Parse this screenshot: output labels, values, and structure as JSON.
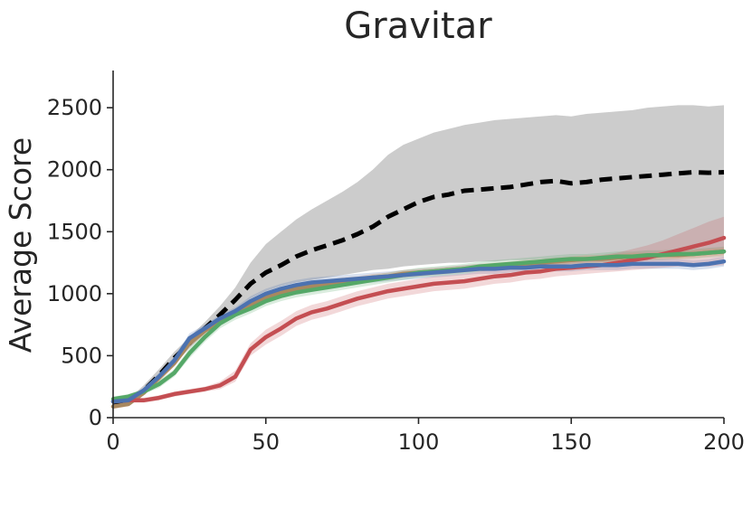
{
  "chart_data": {
    "type": "line",
    "title": "Gravitar",
    "xlabel": "",
    "ylabel": "Average Score",
    "xlim": [
      0,
      200
    ],
    "ylim": [
      0,
      2800
    ],
    "xticks": [
      0,
      50,
      100,
      150,
      200
    ],
    "yticks": [
      0,
      500,
      1000,
      1500,
      2000,
      2500
    ],
    "grid": false,
    "legend": "none",
    "series": [
      {
        "color": "#000000",
        "style": "dashed",
        "band_color": "#bbbbbb",
        "x": [
          0,
          5,
          10,
          15,
          20,
          25,
          30,
          35,
          40,
          45,
          50,
          55,
          60,
          65,
          70,
          75,
          80,
          85,
          90,
          95,
          100,
          105,
          110,
          115,
          120,
          125,
          130,
          135,
          140,
          145,
          150,
          155,
          160,
          165,
          170,
          175,
          180,
          185,
          190,
          195,
          200
        ],
        "values": [
          100,
          120,
          220,
          340,
          480,
          600,
          720,
          830,
          950,
          1080,
          1170,
          1230,
          1300,
          1350,
          1390,
          1430,
          1480,
          1540,
          1620,
          1680,
          1740,
          1780,
          1800,
          1830,
          1840,
          1850,
          1860,
          1880,
          1900,
          1910,
          1890,
          1900,
          1920,
          1930,
          1940,
          1950,
          1960,
          1970,
          1980,
          1975,
          1980
        ],
        "lower": [
          80,
          100,
          190,
          300,
          430,
          560,
          680,
          780,
          870,
          960,
          1020,
          1060,
          1090,
          1110,
          1130,
          1150,
          1170,
          1190,
          1200,
          1220,
          1230,
          1240,
          1250,
          1250,
          1260,
          1260,
          1270,
          1270,
          1280,
          1280,
          1280,
          1290,
          1290,
          1300,
          1300,
          1300,
          1310,
          1310,
          1310,
          1320,
          1320
        ],
        "upper": [
          130,
          150,
          260,
          390,
          530,
          650,
          770,
          900,
          1050,
          1250,
          1400,
          1500,
          1600,
          1680,
          1750,
          1820,
          1900,
          2000,
          2120,
          2200,
          2250,
          2300,
          2330,
          2360,
          2380,
          2400,
          2410,
          2420,
          2430,
          2440,
          2430,
          2450,
          2460,
          2470,
          2480,
          2500,
          2510,
          2520,
          2520,
          2510,
          2520
        ]
      },
      {
        "color": "#4c72b0",
        "style": "solid",
        "band_color": "#4c72b0",
        "x": [
          0,
          5,
          10,
          15,
          20,
          25,
          30,
          35,
          40,
          45,
          50,
          55,
          60,
          65,
          70,
          75,
          80,
          85,
          90,
          95,
          100,
          105,
          110,
          115,
          120,
          125,
          130,
          135,
          140,
          145,
          150,
          155,
          160,
          165,
          170,
          175,
          180,
          185,
          190,
          195,
          200
        ],
        "values": [
          130,
          140,
          220,
          330,
          460,
          640,
          720,
          800,
          860,
          940,
          1000,
          1040,
          1070,
          1090,
          1100,
          1110,
          1120,
          1130,
          1140,
          1150,
          1160,
          1170,
          1180,
          1190,
          1200,
          1200,
          1210,
          1210,
          1220,
          1220,
          1220,
          1230,
          1230,
          1230,
          1240,
          1240,
          1240,
          1240,
          1230,
          1240,
          1260
        ],
        "lower": [
          110,
          120,
          200,
          300,
          430,
          600,
          690,
          770,
          830,
          900,
          960,
          1000,
          1030,
          1050,
          1060,
          1070,
          1080,
          1090,
          1100,
          1110,
          1120,
          1130,
          1140,
          1150,
          1160,
          1160,
          1170,
          1170,
          1180,
          1180,
          1180,
          1190,
          1190,
          1190,
          1200,
          1200,
          1200,
          1200,
          1190,
          1200,
          1220
        ],
        "upper": [
          150,
          160,
          240,
          360,
          490,
          680,
          750,
          830,
          890,
          980,
          1040,
          1080,
          1110,
          1130,
          1140,
          1150,
          1160,
          1170,
          1180,
          1190,
          1200,
          1210,
          1220,
          1230,
          1240,
          1240,
          1250,
          1250,
          1260,
          1260,
          1260,
          1270,
          1270,
          1270,
          1280,
          1280,
          1280,
          1280,
          1270,
          1280,
          1300
        ]
      },
      {
        "color": "#55a868",
        "style": "solid",
        "band_color": "#55a868",
        "x": [
          0,
          5,
          10,
          15,
          20,
          25,
          30,
          35,
          40,
          45,
          50,
          55,
          60,
          65,
          70,
          75,
          80,
          85,
          90,
          95,
          100,
          105,
          110,
          115,
          120,
          125,
          130,
          135,
          140,
          145,
          150,
          155,
          160,
          165,
          170,
          175,
          180,
          185,
          190,
          195,
          200
        ],
        "values": [
          150,
          170,
          210,
          270,
          360,
          520,
          650,
          760,
          830,
          880,
          940,
          980,
          1010,
          1030,
          1050,
          1070,
          1090,
          1110,
          1130,
          1150,
          1170,
          1180,
          1190,
          1200,
          1220,
          1230,
          1240,
          1250,
          1260,
          1270,
          1280,
          1280,
          1290,
          1300,
          1300,
          1310,
          1310,
          1320,
          1320,
          1330,
          1340
        ],
        "lower": [
          130,
          150,
          190,
          240,
          330,
          480,
          610,
          720,
          790,
          840,
          900,
          940,
          970,
          990,
          1010,
          1030,
          1050,
          1070,
          1090,
          1110,
          1130,
          1140,
          1150,
          1160,
          1180,
          1190,
          1200,
          1210,
          1220,
          1230,
          1240,
          1240,
          1250,
          1260,
          1260,
          1270,
          1270,
          1280,
          1280,
          1290,
          1300
        ],
        "upper": [
          170,
          190,
          230,
          300,
          390,
          560,
          690,
          800,
          870,
          920,
          980,
          1020,
          1050,
          1070,
          1090,
          1110,
          1130,
          1150,
          1170,
          1190,
          1210,
          1220,
          1230,
          1240,
          1260,
          1270,
          1280,
          1290,
          1300,
          1310,
          1320,
          1320,
          1330,
          1340,
          1340,
          1350,
          1350,
          1360,
          1360,
          1370,
          1380
        ]
      },
      {
        "color": "#c44e52",
        "style": "solid",
        "band_color": "#c44e52",
        "x": [
          0,
          5,
          10,
          15,
          20,
          25,
          30,
          35,
          40,
          45,
          50,
          55,
          60,
          65,
          70,
          75,
          80,
          85,
          90,
          95,
          100,
          105,
          110,
          115,
          120,
          125,
          130,
          135,
          140,
          145,
          150,
          155,
          160,
          165,
          170,
          175,
          180,
          185,
          190,
          195,
          200
        ],
        "values": [
          130,
          140,
          140,
          160,
          190,
          210,
          230,
          260,
          330,
          550,
          650,
          720,
          800,
          850,
          880,
          920,
          960,
          990,
          1020,
          1040,
          1060,
          1080,
          1090,
          1100,
          1120,
          1140,
          1150,
          1170,
          1180,
          1200,
          1210,
          1220,
          1230,
          1250,
          1270,
          1290,
          1320,
          1350,
          1380,
          1410,
          1450
        ],
        "lower": [
          110,
          120,
          120,
          140,
          170,
          190,
          210,
          230,
          290,
          500,
          590,
          660,
          740,
          790,
          820,
          860,
          900,
          930,
          960,
          980,
          1000,
          1020,
          1030,
          1040,
          1060,
          1080,
          1090,
          1110,
          1120,
          1140,
          1150,
          1160,
          1170,
          1180,
          1190,
          1200,
          1210,
          1220,
          1220,
          1220,
          1230
        ],
        "upper": [
          150,
          160,
          160,
          180,
          210,
          230,
          250,
          290,
          380,
          600,
          710,
          780,
          860,
          910,
          940,
          980,
          1020,
          1050,
          1080,
          1100,
          1120,
          1140,
          1150,
          1160,
          1180,
          1200,
          1210,
          1230,
          1240,
          1260,
          1270,
          1290,
          1310,
          1330,
          1360,
          1390,
          1430,
          1480,
          1530,
          1580,
          1620
        ]
      },
      {
        "color": "#a88860",
        "style": "solid",
        "band_color": "#dd8452",
        "x": [
          0,
          5,
          10,
          15,
          20,
          25,
          30,
          35,
          40,
          45,
          50,
          55,
          60,
          65,
          70,
          75,
          80,
          85,
          90,
          95,
          100,
          105,
          110,
          115,
          120,
          125,
          130,
          135,
          140,
          145,
          150,
          155,
          160,
          165,
          170,
          175,
          180,
          185,
          190,
          195,
          200
        ],
        "values": [
          90,
          110,
          200,
          320,
          440,
          600,
          700,
          780,
          850,
          910,
          970,
          1010,
          1040,
          1060,
          1080,
          1100,
          1110,
          1130,
          1140,
          1160,
          1170,
          1180,
          1190,
          1200,
          1210,
          1220,
          1230,
          1240,
          1250,
          1260,
          1270,
          1280,
          1280,
          1290,
          1300,
          1300,
          1310,
          1310,
          1320,
          1330,
          1340
        ],
        "lower": [
          70,
          90,
          180,
          290,
          410,
          570,
          670,
          750,
          820,
          880,
          940,
          980,
          1010,
          1030,
          1050,
          1070,
          1080,
          1100,
          1110,
          1130,
          1140,
          1150,
          1160,
          1170,
          1180,
          1190,
          1200,
          1210,
          1220,
          1230,
          1240,
          1250,
          1250,
          1260,
          1270,
          1270,
          1280,
          1280,
          1290,
          1300,
          1310
        ],
        "upper": [
          110,
          130,
          220,
          350,
          470,
          630,
          730,
          810,
          880,
          940,
          1000,
          1040,
          1070,
          1090,
          1110,
          1130,
          1140,
          1160,
          1170,
          1190,
          1200,
          1210,
          1220,
          1230,
          1240,
          1250,
          1260,
          1270,
          1280,
          1290,
          1300,
          1310,
          1310,
          1320,
          1330,
          1330,
          1340,
          1340,
          1350,
          1360,
          1370
        ]
      }
    ]
  }
}
